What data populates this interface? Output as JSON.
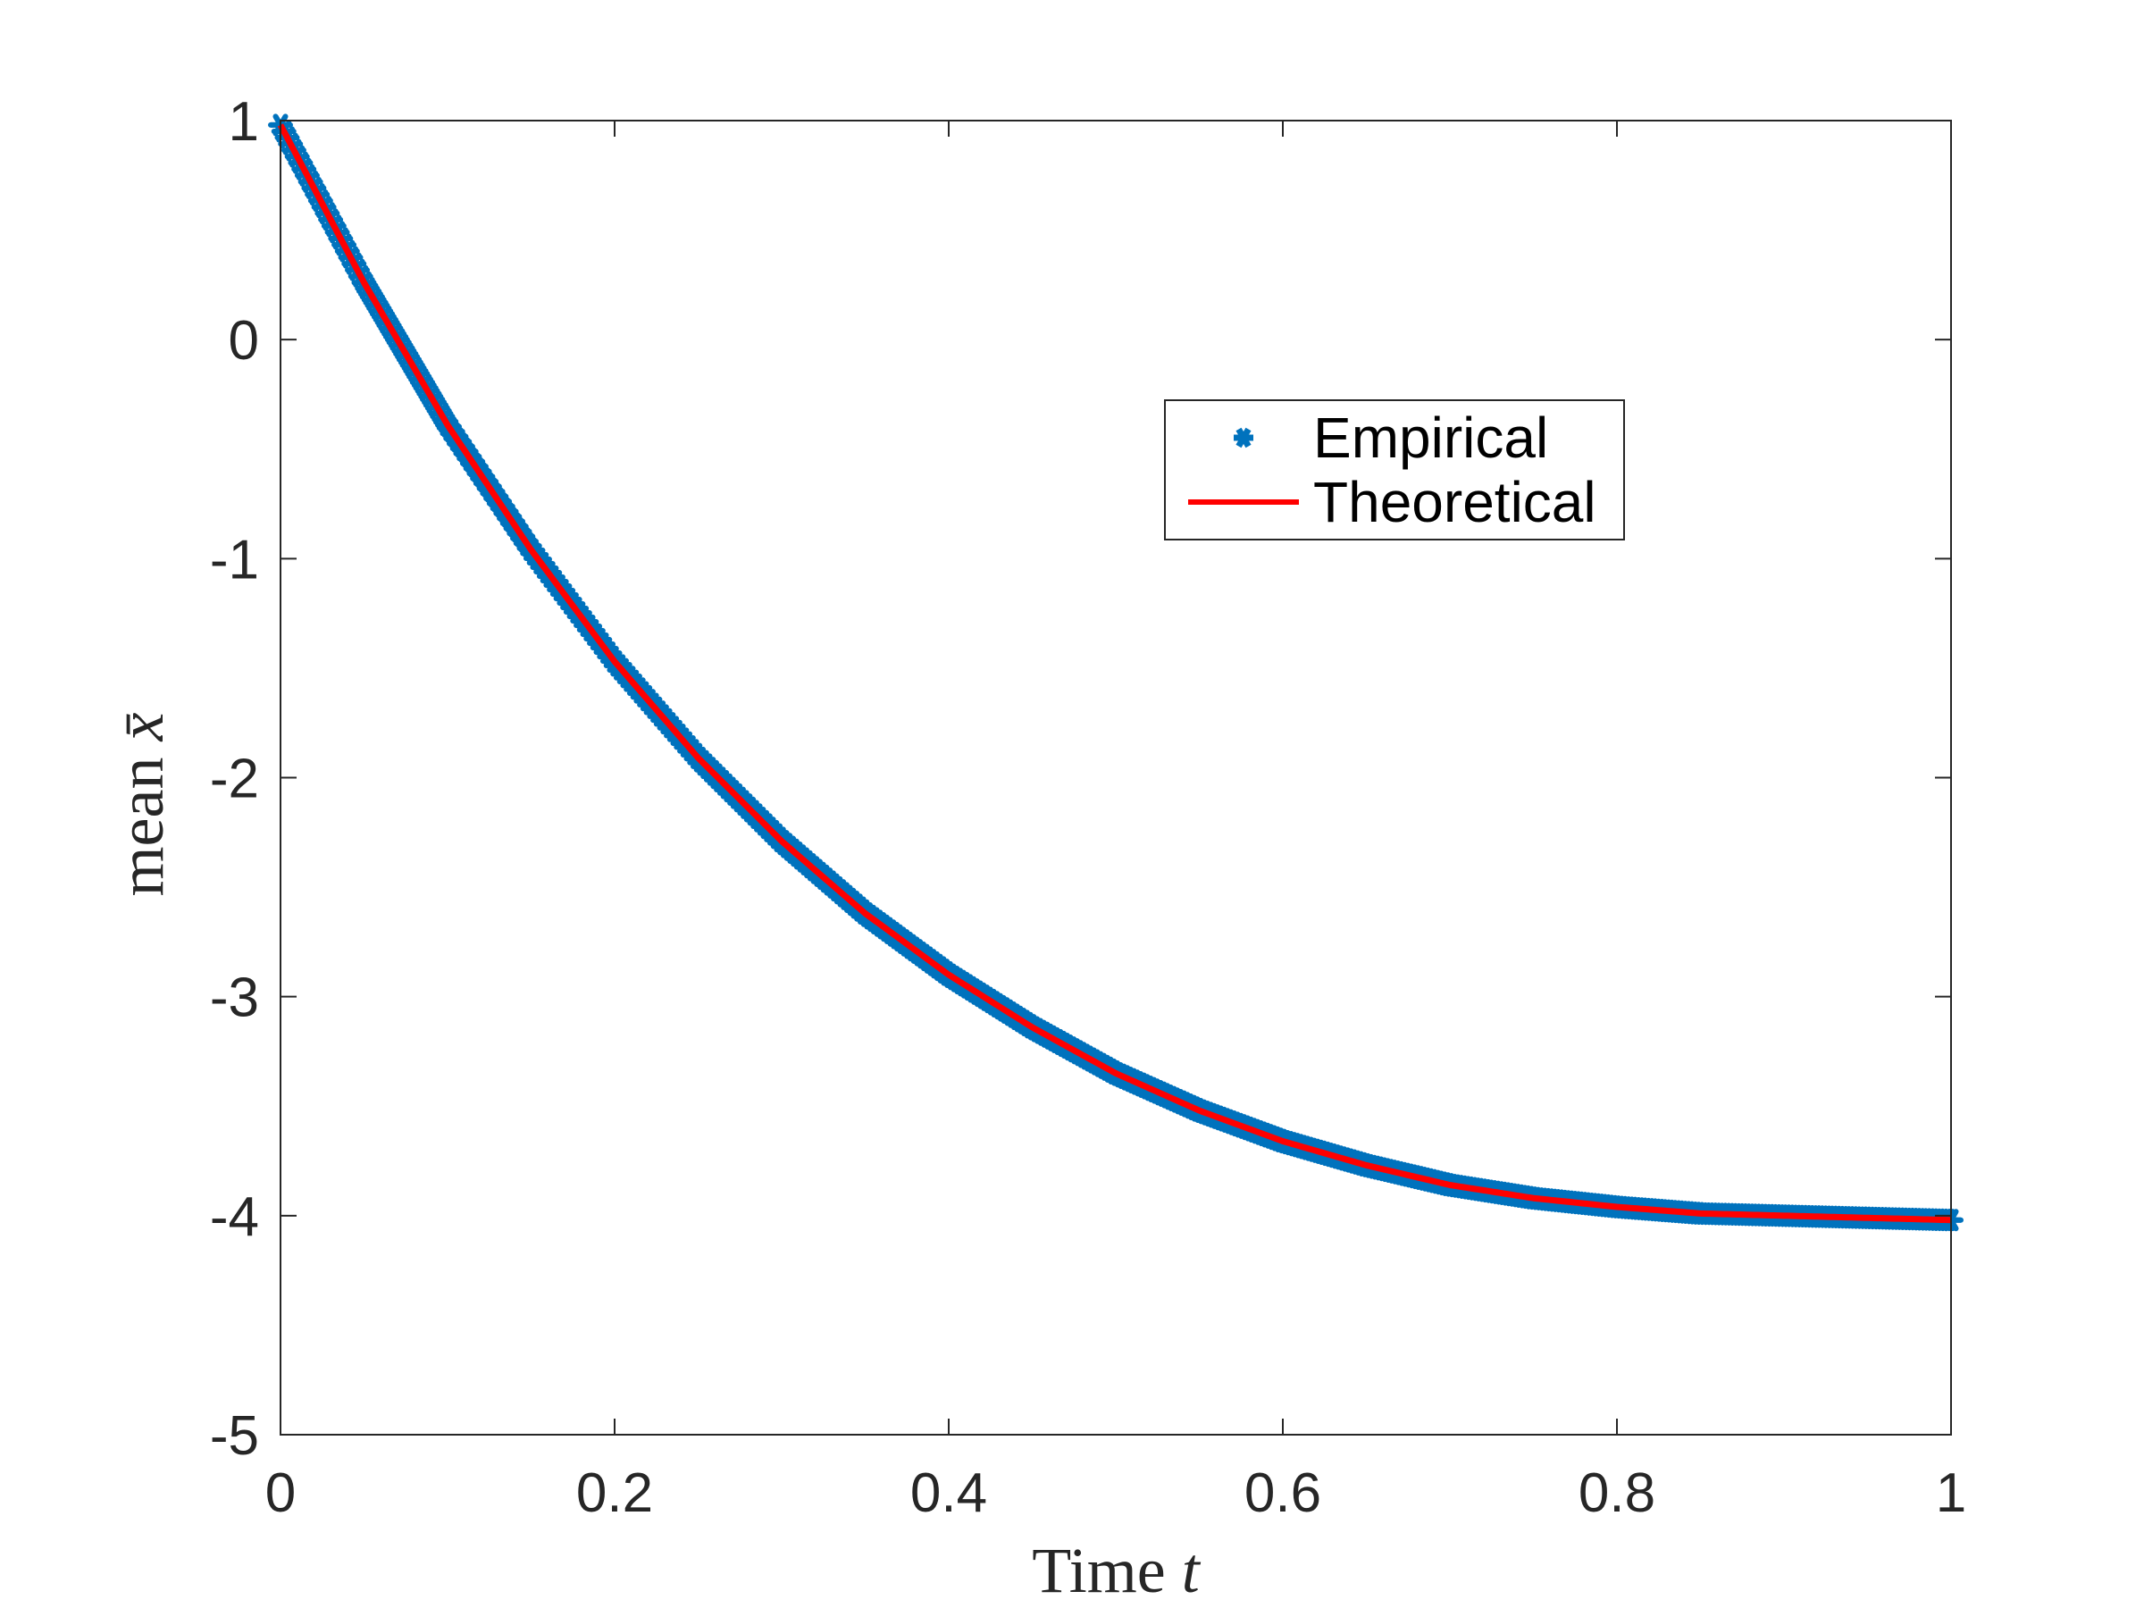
{
  "chart_data": {
    "type": "line",
    "title": "",
    "xlabel": "Time",
    "xlabel_var": "t",
    "ylabel": "mean",
    "ylabel_var": "x̄",
    "xlim": [
      0,
      1
    ],
    "ylim": [
      -5,
      1
    ],
    "xticks": [
      0,
      0.2,
      0.4,
      0.6,
      0.8,
      1
    ],
    "xtick_labels": [
      "0",
      "0.2",
      "0.4",
      "0.6",
      "0.8",
      "1"
    ],
    "yticks": [
      -5,
      -4,
      -3,
      -2,
      -1,
      0,
      1
    ],
    "ytick_labels": [
      "-5",
      "-4",
      "-3",
      "-2",
      "-1",
      "0",
      "1"
    ],
    "grid": false,
    "legend_position": "upper-right of center",
    "series": [
      {
        "name": "Empirical",
        "style": "markers",
        "color": "#0072BD",
        "x": [
          0,
          0.05,
          0.1,
          0.15,
          0.2,
          0.25,
          0.3,
          0.35,
          0.4,
          0.45,
          0.5,
          0.55,
          0.6,
          0.65,
          0.7,
          0.75,
          0.8,
          0.85,
          0.9,
          0.95,
          1.0
        ],
        "y": [
          0.98,
          0.26,
          -0.39,
          -0.96,
          -1.47,
          -1.91,
          -2.29,
          -2.62,
          -2.9,
          -3.14,
          -3.35,
          -3.52,
          -3.66,
          -3.77,
          -3.86,
          -3.92,
          -3.96,
          -3.99,
          -4.0,
          -4.01,
          -4.02
        ]
      },
      {
        "name": "Theoretical",
        "style": "line",
        "color": "#FF0000",
        "x": [
          0,
          0.05,
          0.1,
          0.15,
          0.2,
          0.25,
          0.3,
          0.35,
          0.4,
          0.45,
          0.5,
          0.55,
          0.6,
          0.65,
          0.7,
          0.75,
          0.8,
          0.85,
          0.9,
          0.95,
          1.0
        ],
        "y": [
          0.98,
          0.26,
          -0.39,
          -0.96,
          -1.47,
          -1.91,
          -2.29,
          -2.62,
          -2.9,
          -3.14,
          -3.35,
          -3.52,
          -3.66,
          -3.77,
          -3.86,
          -3.92,
          -3.96,
          -3.99,
          -4.0,
          -4.01,
          -4.02
        ]
      }
    ]
  }
}
